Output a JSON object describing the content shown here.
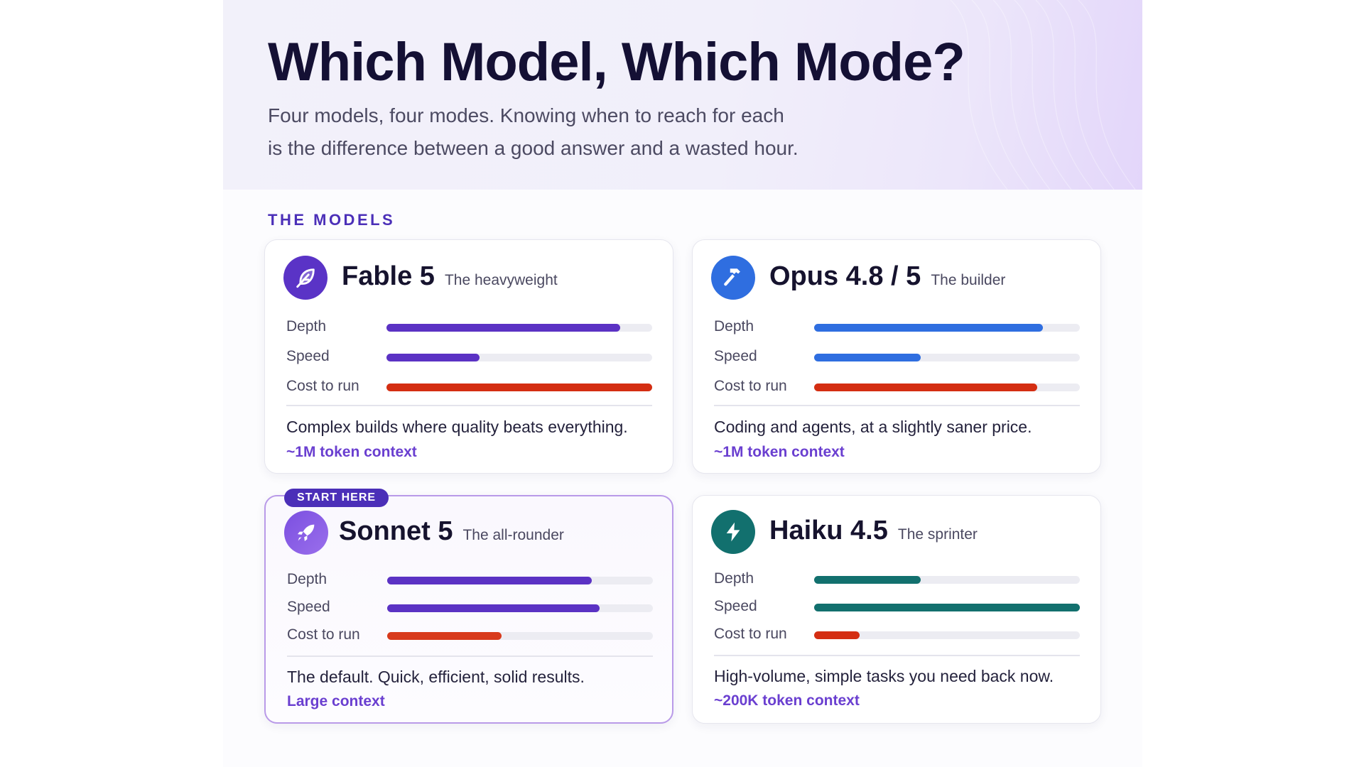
{
  "header": {
    "title": "Which Model, Which Mode?",
    "subtitle_line1": "Four models, four modes. Knowing when to reach for each",
    "subtitle_line2": "is the difference between a good answer and a wasted hour."
  },
  "section_label": "THE MODELS",
  "metric_labels": {
    "depth": "Depth",
    "speed": "Speed",
    "cost": "Cost to run"
  },
  "models": [
    {
      "name": "Fable 5",
      "tagline": "The heavyweight",
      "icon": "feather-icon",
      "accent": "#5b32c4",
      "cost_color": "#d42e12",
      "depth": 0.88,
      "speed": 0.35,
      "cost": 1.0,
      "description": "Complex builds where quality beats everything.",
      "context": "~1M token context"
    },
    {
      "name": "Opus 4.8 / 5",
      "tagline": "The builder",
      "icon": "hammer-icon",
      "accent": "#2f6ee0",
      "cost_color": "#d42e12",
      "depth": 0.86,
      "speed": 0.4,
      "cost": 0.84,
      "description": "Coding and agents, at a slightly saner price.",
      "context": "~1M token context"
    },
    {
      "name": "Sonnet 5",
      "tagline": "The all-rounder",
      "badge": "START HERE",
      "icon": "rocket-icon",
      "accent": "#5b32c4",
      "cost_color": "#d83a1c",
      "depth": 0.77,
      "speed": 0.8,
      "cost": 0.43,
      "description": "The default. Quick, efficient, solid results.",
      "context": "Large context"
    },
    {
      "name": "Haiku 4.5",
      "tagline": "The sprinter",
      "icon": "lightning-icon",
      "accent": "#12706e",
      "cost_color": "#d42e12",
      "depth": 0.4,
      "speed": 1.0,
      "cost": 0.17,
      "description": "High-volume, simple tasks you need back now.",
      "context": "~200K token context"
    }
  ]
}
